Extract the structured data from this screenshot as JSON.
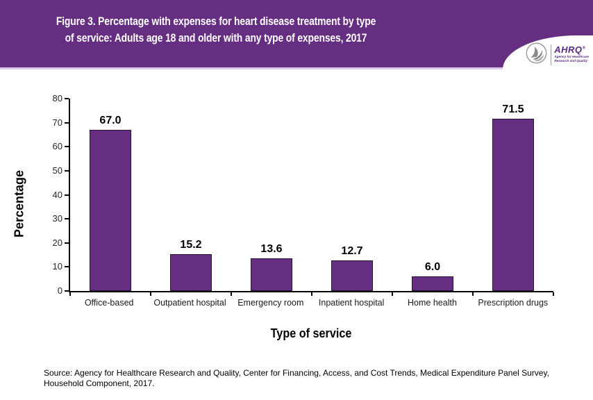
{
  "banner": {
    "title_line1": "Figure 3. Percentage with expenses for heart disease treatment by type",
    "title_line2": "of service: Adults age 18 and older with any type of expenses, 2017",
    "background_color": "#662e80",
    "text_color": "#ffffff"
  },
  "logo": {
    "org_abbrev": "AHRQ",
    "reg_mark": "®",
    "tagline_line1": "Agency for Healthcare",
    "tagline_line2": "Research and Quality",
    "accent_color": "#5a2a7e"
  },
  "chart_data": {
    "type": "bar",
    "title": "",
    "categories": [
      "Office-based",
      "Outpatient hospital",
      "Emergency room",
      "Inpatient hospital",
      "Home health",
      "Prescription drugs"
    ],
    "values": [
      67.0,
      15.2,
      13.6,
      12.7,
      6.0,
      71.5
    ],
    "value_labels": [
      "67.0",
      "15.2",
      "13.6",
      "12.7",
      "6.0",
      "71.5"
    ],
    "xlabel": "Type of service",
    "ylabel": "Percentage",
    "ylim": [
      0,
      80
    ],
    "yticks": [
      0,
      10,
      20,
      30,
      40,
      50,
      60,
      70,
      80
    ],
    "bar_color": "#662e80",
    "bar_border_color": "#2a1335",
    "grid": false,
    "legend": "none"
  },
  "source": {
    "line1": "Source: Agency for Healthcare Research and Quality, Center for Financing, Access, and Cost Trends, Medical Expenditure Panel Survey,",
    "line2": "Household Component, 2017."
  }
}
